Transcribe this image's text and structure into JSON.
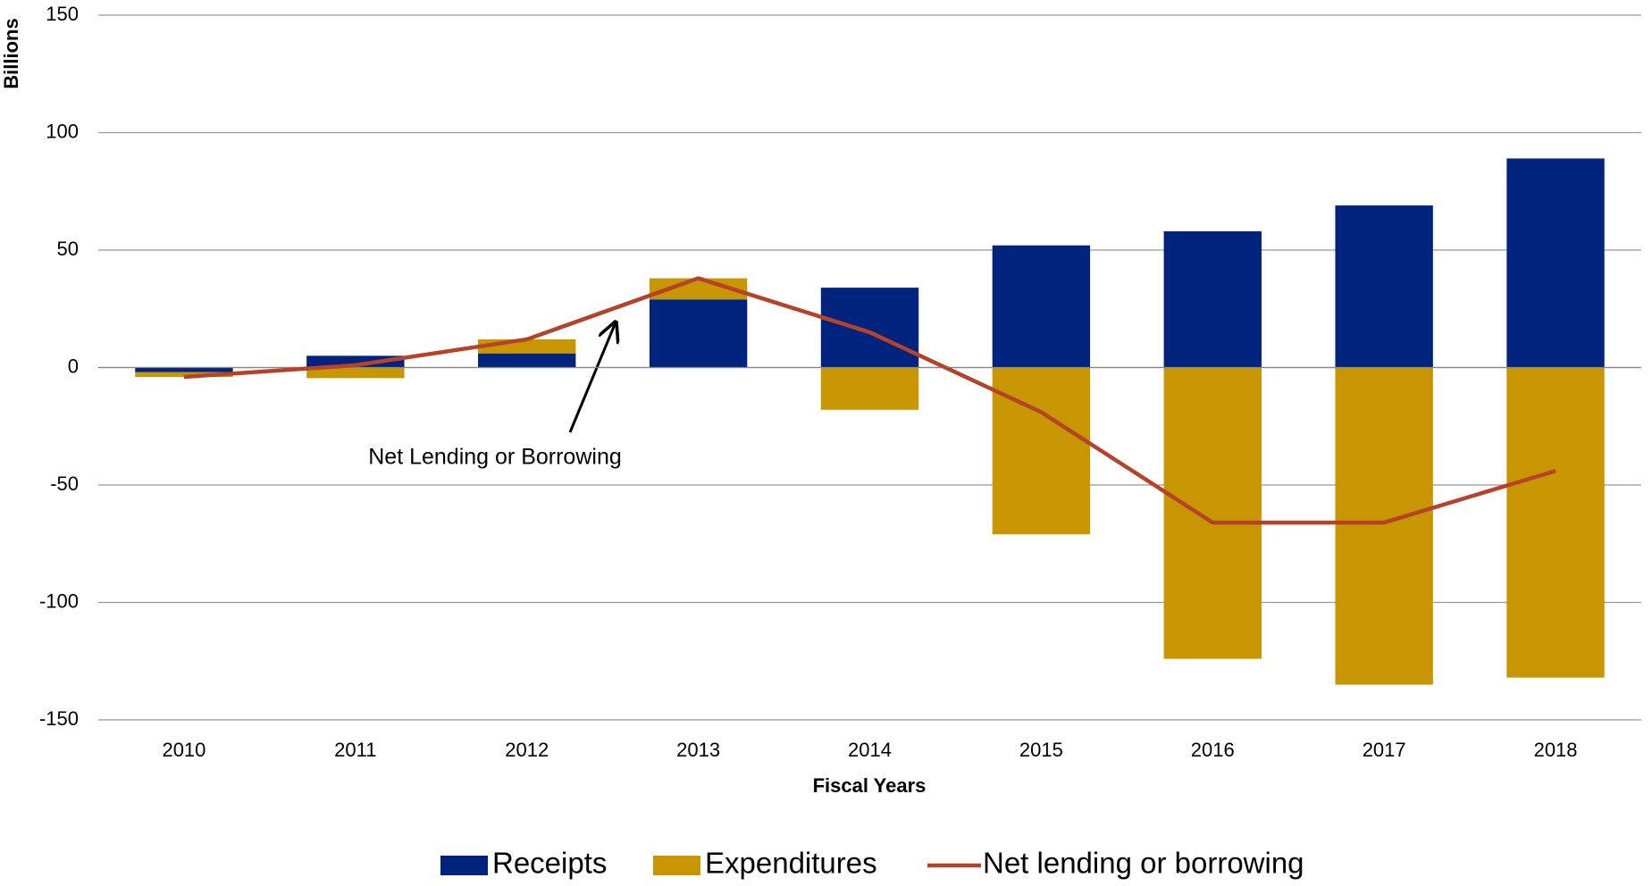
{
  "chart_data": {
    "type": "bar",
    "y_label": "Billions",
    "x_label": "Fiscal Years",
    "annotation": "Net Lending or Borrowing",
    "categories": [
      "2010",
      "2011",
      "2012",
      "2013",
      "2014",
      "2015",
      "2016",
      "2017",
      "2018"
    ],
    "series": [
      {
        "name": "Receipts",
        "type": "bar",
        "color": "#00247d",
        "values": [
          -2,
          5,
          6,
          29,
          34,
          52,
          58,
          69,
          89
        ]
      },
      {
        "name": "Expenditures",
        "type": "bar",
        "color": "#c89600",
        "values": [
          -2,
          -4.5,
          6,
          9,
          -18,
          -71,
          -124,
          -135,
          -132
        ]
      },
      {
        "name": "Net lending or borrowing",
        "type": "line",
        "color": "#b5432a",
        "values": [
          -4,
          1,
          12,
          38,
          15,
          -19,
          -66,
          -66,
          -44
        ]
      }
    ],
    "ylim": [
      -150,
      150
    ],
    "yticks": [
      -150,
      -100,
      -50,
      0,
      50,
      100,
      150
    ],
    "grid": true
  }
}
